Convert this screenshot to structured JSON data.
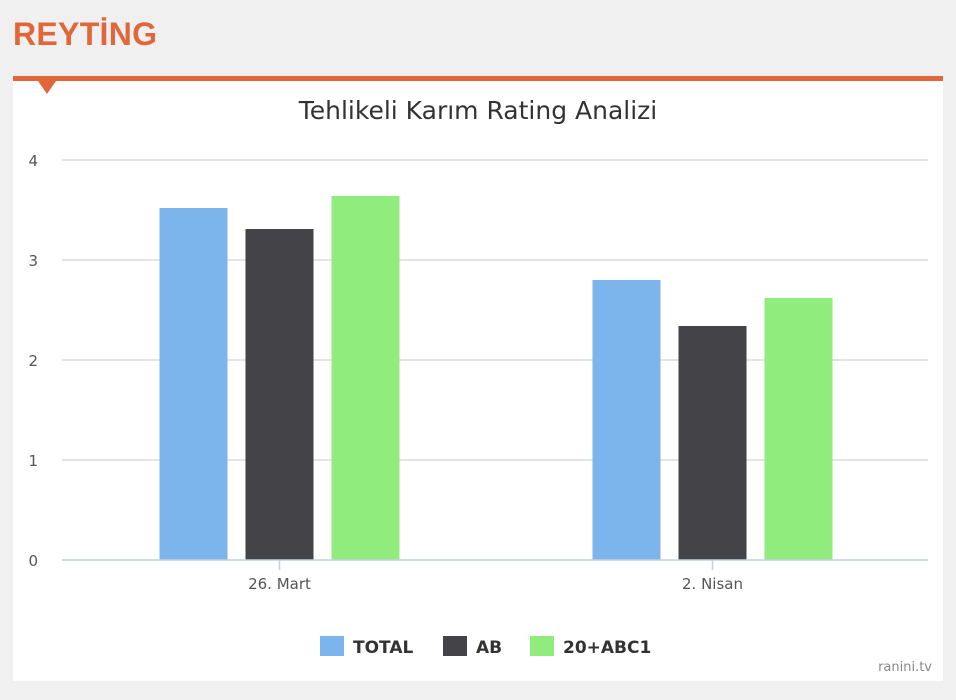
{
  "header": {
    "title": "REYTİNG"
  },
  "colors": {
    "accent": "#e1673a",
    "total": "#7cb5ec",
    "ab": "#434348",
    "abc1": "#90ed7d"
  },
  "watermark": "ranini.tv",
  "chart_data": {
    "type": "bar",
    "title": "Tehlikeli Karım Rating Analizi",
    "xlabel": "",
    "ylabel": "",
    "categories": [
      "26. Mart",
      "2. Nisan"
    ],
    "series": [
      {
        "name": "TOTAL",
        "color": "#7cb5ec",
        "values": [
          3.52,
          2.8
        ]
      },
      {
        "name": "AB",
        "color": "#434348",
        "values": [
          3.31,
          2.34
        ]
      },
      {
        "name": "20+ABC1",
        "color": "#90ed7d",
        "values": [
          3.64,
          2.62
        ]
      }
    ],
    "ylim": [
      0,
      4
    ],
    "yticks": [
      0,
      1,
      2,
      3,
      4
    ],
    "grid": true,
    "legend": "bottom-center"
  }
}
